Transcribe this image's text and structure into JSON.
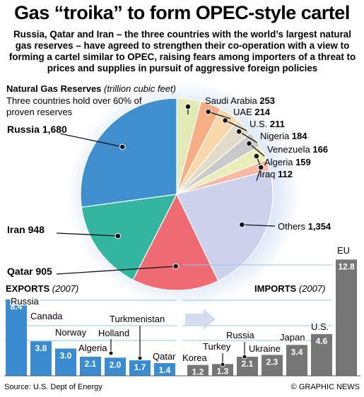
{
  "header": {
    "title": "Gas “troika” to form OPEC-style cartel",
    "subtitle": "Russia, Qatar and Iran – the three countries with the world’s largest natural gas reserves – have agreed to strengthen their co-operation with a view to forming a cartel similar to OPEC, raising fears among importers of a threat to prices and supplies in pursuit of aggressive foreign policies"
  },
  "reserves": {
    "heading": "Natural Gas Reserves",
    "unit": "(trillion cubic feet)",
    "note": "Three countries hold over 60% of proven reserves"
  },
  "exports_heading": {
    "label": "EXPORTS",
    "year": "(2007)"
  },
  "imports_heading": {
    "label": "IMPORTS",
    "year": "(2007)"
  },
  "footer": {
    "source": "Source: U.S. Dept of Energy",
    "credit": "© GRAPHIC NEWS"
  },
  "chart_data": [
    {
      "type": "pie",
      "title": "Natural Gas Reserves",
      "unit": "trillion cubic feet",
      "slices": [
        {
          "label": "Saudi Arabia",
          "value": 253,
          "color": "#e2ebb8"
        },
        {
          "label": "UAE",
          "value": 214,
          "color": "#f7ae84"
        },
        {
          "label": "U.S.",
          "value": 211,
          "color": "#f8d8aa"
        },
        {
          "label": "Nigeria",
          "value": 184,
          "color": "#e3dbc9"
        },
        {
          "label": "Venezuela",
          "value": 166,
          "color": "#c9c9c9"
        },
        {
          "label": "Algeria",
          "value": 159,
          "color": "#ebedb7"
        },
        {
          "label": "Iraq",
          "value": 112,
          "color": "#f8b9a4"
        },
        {
          "label": "Others",
          "value": 1354,
          "color": "#ccd2ec"
        },
        {
          "label": "Qatar",
          "value": 905,
          "color": "#ef6b73"
        },
        {
          "label": "Iran",
          "value": 948,
          "color": "#33b5a0"
        },
        {
          "label": "Russia",
          "value": 1680,
          "color": "#3f8fcf"
        }
      ]
    },
    {
      "type": "bar",
      "title": "EXPORTS (2007)",
      "color": "#3a8bd0",
      "categories": [
        "Russia",
        "Canada",
        "Norway",
        "Algeria",
        "Holland",
        "Turkmenistan",
        "Qatar"
      ],
      "values": [
        8.4,
        3.8,
        3.0,
        2.1,
        2.0,
        1.7,
        1.4
      ]
    },
    {
      "type": "bar",
      "title": "IMPORTS (2007)",
      "color": "#767676",
      "categories": [
        "Korea",
        "Turkey",
        "Russia",
        "Ukraine",
        "Japan",
        "U.S.",
        "EU"
      ],
      "values": [
        1.2,
        1.3,
        2.1,
        2.3,
        3.4,
        4.6,
        12.8
      ]
    }
  ]
}
